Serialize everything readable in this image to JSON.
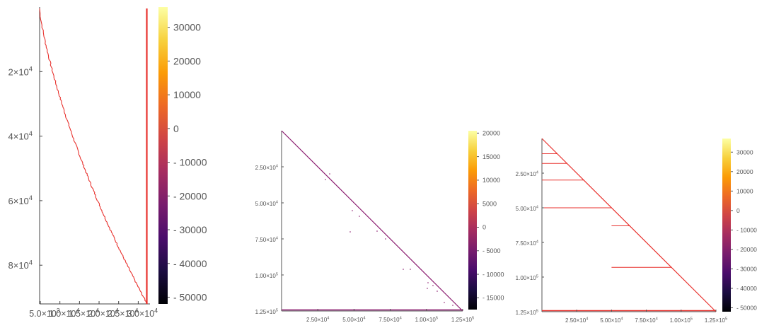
{
  "colormap": {
    "name": "inferno",
    "stops": [
      "#000004",
      "#1b0c41",
      "#4a0c6b",
      "#781c6d",
      "#a52c60",
      "#cf4446",
      "#ed6925",
      "#fb9b06",
      "#f7d13d",
      "#fcffa4"
    ]
  },
  "chart_data": [
    {
      "type": "heatmap",
      "title": "",
      "xlabel": "",
      "ylabel": "",
      "line_color": "#e8322e",
      "y_axis": {
        "ticks": [
          {
            "value": 20000,
            "mant": "2×10",
            "exp": "4"
          },
          {
            "value": 40000,
            "mant": "4×10",
            "exp": "4"
          },
          {
            "value": 60000,
            "mant": "6×10",
            "exp": "4"
          },
          {
            "value": 80000,
            "mant": "8×10",
            "exp": "4"
          }
        ]
      },
      "x_axis": {
        "ticks": [
          {
            "value": 5000,
            "mant": "5.0×10",
            "exp": "3"
          },
          {
            "value": 10000,
            "mant": "1.0×10",
            "exp": "4"
          },
          {
            "value": 15000,
            "mant": "1.5×10",
            "exp": "4"
          },
          {
            "value": 20000,
            "mant": "2.0×10",
            "exp": "4"
          },
          {
            "value": 25000,
            "mant": "2.5×10",
            "exp": "4"
          },
          {
            "value": 30000,
            "mant": "3.0×10",
            "exp": "4"
          }
        ]
      },
      "colorbar": {
        "range": [
          -52000,
          36000
        ],
        "ticks": [
          30000,
          20000,
          10000,
          0,
          -10000,
          -20000,
          -30000,
          -40000,
          -50000
        ],
        "labels": [
          "30000",
          "20000",
          "10000",
          "0",
          "- 10000",
          "- 20000",
          "- 30000",
          "- 40000",
          "- 50000"
        ]
      }
    },
    {
      "type": "heatmap",
      "title": "",
      "xlabel": "",
      "ylabel": "",
      "line_color": "#8a1a6e",
      "y_axis": {
        "ticks": [
          {
            "value": 25000,
            "mant": "2.50×10",
            "exp": "4"
          },
          {
            "value": 50000,
            "mant": "5.00×10",
            "exp": "4"
          },
          {
            "value": 75000,
            "mant": "7.50×10",
            "exp": "4"
          },
          {
            "value": 100000,
            "mant": "1.00×10",
            "exp": "5"
          },
          {
            "value": 125000,
            "mant": "1.25×10",
            "exp": "5"
          }
        ]
      },
      "x_axis": {
        "ticks": [
          {
            "value": 25000,
            "mant": "2.50×10",
            "exp": "4"
          },
          {
            "value": 50000,
            "mant": "5.00×10",
            "exp": "4"
          },
          {
            "value": 75000,
            "mant": "7.50×10",
            "exp": "4"
          },
          {
            "value": 100000,
            "mant": "1.00×10",
            "exp": "5"
          },
          {
            "value": 125000,
            "mant": "1.25×10",
            "exp": "5"
          }
        ]
      },
      "colorbar": {
        "range": [
          -17500,
          20500
        ],
        "ticks": [
          20000,
          15000,
          10000,
          5000,
          0,
          -5000,
          -10000,
          -15000
        ],
        "labels": [
          "20000",
          "15000",
          "10000",
          "5000",
          "0",
          "- 5000",
          "- 10000",
          "- 15000"
        ]
      }
    },
    {
      "type": "heatmap",
      "title": "",
      "xlabel": "",
      "ylabel": "",
      "line_color": "#e8322e",
      "y_axis": {
        "ticks": [
          {
            "value": 25000,
            "mant": "2.50×10",
            "exp": "4"
          },
          {
            "value": 50000,
            "mant": "5.00×10",
            "exp": "4"
          },
          {
            "value": 75000,
            "mant": "7.50×10",
            "exp": "4"
          },
          {
            "value": 100000,
            "mant": "1.00×10",
            "exp": "5"
          },
          {
            "value": 125000,
            "mant": "1.25×10",
            "exp": "5"
          }
        ]
      },
      "x_axis": {
        "ticks": [
          {
            "value": 25000,
            "mant": "2.50×10",
            "exp": "4"
          },
          {
            "value": 50000,
            "mant": "5.00×10",
            "exp": "4"
          },
          {
            "value": 75000,
            "mant": "7.50×10",
            "exp": "4"
          },
          {
            "value": 100000,
            "mant": "1.00×10",
            "exp": "5"
          },
          {
            "value": 125000,
            "mant": "1.25×10",
            "exp": "5"
          }
        ]
      },
      "colorbar": {
        "range": [
          -52000,
          37000
        ],
        "ticks": [
          30000,
          20000,
          10000,
          0,
          -10000,
          -20000,
          -30000,
          -40000,
          -50000
        ],
        "labels": [
          "30000",
          "20000",
          "10000",
          "0",
          "- 10000",
          "- 20000",
          "- 30000",
          "- 40000",
          "- 50000"
        ]
      }
    }
  ]
}
